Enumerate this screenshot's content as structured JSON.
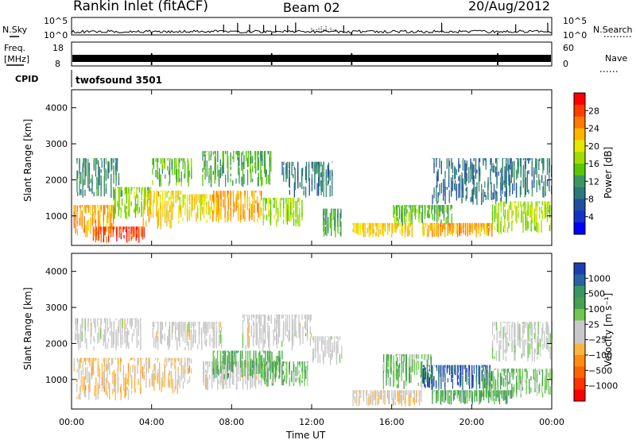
{
  "header": {
    "station": "Rankin Inlet (fitACF)",
    "beam": "Beam 02",
    "date": "20/Aug/2012"
  },
  "summary": {
    "nsky_label": "N.Sky",
    "nsky_ticks": [
      "10^5",
      "10^0"
    ],
    "nsearch_label": "N.Search",
    "nsearch_ticks": [
      "10^5",
      "10^0"
    ],
    "freq_label_top": "Freq.",
    "freq_label_unit": "[MHz]",
    "freq_ticks": [
      "18",
      "8"
    ],
    "nave_label": "Nave",
    "nave_ticks": [
      "60",
      "0"
    ],
    "cpid_label": "CPID",
    "cpid_value": "twofsound 3501"
  },
  "colorbars": {
    "power": {
      "title": "Power [dB]",
      "ticks": [
        "28",
        "24",
        "20",
        "16",
        "12",
        "8",
        "4"
      ],
      "colors": [
        "#ff0000",
        "#ff3c00",
        "#ff7800",
        "#ffb400",
        "#e6e600",
        "#a0dc00",
        "#5ac800",
        "#3c9660",
        "#2d7878",
        "#1e50a0",
        "#1432c8",
        "#0000ff"
      ]
    },
    "velocity": {
      "title": "Velocity [m s⁻¹]",
      "ticks": [
        "1000",
        "500",
        "100",
        "25",
        "−25",
        "−100",
        "−500",
        "−1000"
      ],
      "colors": [
        "#1e3cb4",
        "#2864a0",
        "#3c9664",
        "#46a050",
        "#6ec850",
        "#c8c8c8",
        "#c8c8c8",
        "#ffb43c",
        "#ff8c14",
        "#ff6400",
        "#ff3200",
        "#ff0000"
      ]
    }
  },
  "axes": {
    "ylabel": "Slant Range [km]",
    "xlabel": "Time UT",
    "yticks": [
      "4000",
      "3000",
      "2000",
      "1000"
    ],
    "xticks": [
      "00:00",
      "04:00",
      "08:00",
      "12:00",
      "16:00",
      "20:00",
      "00:00"
    ]
  },
  "chart_data": {
    "type": "heatmap",
    "x_unit": "hours UT",
    "x_range": [
      0,
      24
    ],
    "y_unit": "km",
    "y_range": [
      180,
      4500
    ],
    "panels": [
      {
        "name": "Power [dB]",
        "color_range": [
          0,
          30
        ],
        "blobs": [
          {
            "t0": 0.1,
            "t1": 2.1,
            "r0": 400,
            "r1": 1300,
            "value": 22
          },
          {
            "t0": 0.2,
            "t1": 2.4,
            "r0": 1500,
            "r1": 2600,
            "value": 10
          },
          {
            "t0": 1.0,
            "t1": 3.6,
            "r0": 250,
            "r1": 700,
            "value": 26
          },
          {
            "t0": 2.0,
            "t1": 4.0,
            "r0": 900,
            "r1": 1800,
            "value": 15
          },
          {
            "t0": 3.5,
            "t1": 5.5,
            "r0": 600,
            "r1": 1700,
            "value": 20
          },
          {
            "t0": 4.0,
            "t1": 6.0,
            "r0": 1800,
            "r1": 2600,
            "value": 13
          },
          {
            "t0": 5.5,
            "t1": 7.5,
            "r0": 800,
            "r1": 1600,
            "value": 19
          },
          {
            "t0": 7.0,
            "t1": 9.5,
            "r0": 800,
            "r1": 1700,
            "value": 22
          },
          {
            "t0": 6.5,
            "t1": 10.0,
            "r0": 1800,
            "r1": 2800,
            "value": 12
          },
          {
            "t0": 9.5,
            "t1": 11.5,
            "r0": 700,
            "r1": 1500,
            "value": 16
          },
          {
            "t0": 10.5,
            "t1": 13.0,
            "r0": 1500,
            "r1": 2500,
            "value": 9
          },
          {
            "t0": 12.5,
            "t1": 13.5,
            "r0": 400,
            "r1": 1200,
            "value": 12
          },
          {
            "t0": 14.0,
            "t1": 17.0,
            "r0": 400,
            "r1": 800,
            "value": 20
          },
          {
            "t0": 16.0,
            "t1": 19.0,
            "r0": 700,
            "r1": 1300,
            "value": 13
          },
          {
            "t0": 17.5,
            "t1": 21.0,
            "r0": 400,
            "r1": 800,
            "value": 22
          },
          {
            "t0": 18.0,
            "t1": 22.0,
            "r0": 1300,
            "r1": 2600,
            "value": 8
          },
          {
            "t0": 21.0,
            "t1": 24.0,
            "r0": 500,
            "r1": 1400,
            "value": 16
          },
          {
            "t0": 21.5,
            "t1": 24.0,
            "r0": 1500,
            "r1": 2600,
            "value": 9
          }
        ]
      },
      {
        "name": "Velocity [m s-1]",
        "color_range": [
          -1000,
          1000
        ],
        "blobs": [
          {
            "t0": 0.1,
            "t1": 3.5,
            "r0": 1800,
            "r1": 2700,
            "value": 0
          },
          {
            "t0": 0.1,
            "t1": 3.0,
            "r0": 400,
            "r1": 1600,
            "value": 180
          },
          {
            "t0": 3.0,
            "t1": 6.0,
            "r0": 600,
            "r1": 1600,
            "value": 160
          },
          {
            "t0": 4.0,
            "t1": 7.5,
            "r0": 1800,
            "r1": 2600,
            "value": 0
          },
          {
            "t0": 6.5,
            "t1": 9.5,
            "r0": 700,
            "r1": 1500,
            "value": 10
          },
          {
            "t0": 7.0,
            "t1": 10.5,
            "r0": 1000,
            "r1": 1800,
            "value": -350
          },
          {
            "t0": 9.5,
            "t1": 11.8,
            "r0": 800,
            "r1": 1500,
            "value": -300
          },
          {
            "t0": 8.5,
            "t1": 12.0,
            "r0": 1800,
            "r1": 2800,
            "value": 0
          },
          {
            "t0": 12.0,
            "t1": 13.5,
            "r0": 1400,
            "r1": 2200,
            "value": -10
          },
          {
            "t0": 14.0,
            "t1": 17.5,
            "r0": 250,
            "r1": 700,
            "value": 120
          },
          {
            "t0": 15.5,
            "t1": 18.0,
            "r0": 700,
            "r1": 1700,
            "value": -300
          },
          {
            "t0": 17.5,
            "t1": 21.0,
            "r0": 700,
            "r1": 1400,
            "value": -800
          },
          {
            "t0": 18.0,
            "t1": 22.0,
            "r0": 300,
            "r1": 700,
            "value": -400
          },
          {
            "t0": 20.5,
            "t1": 24.0,
            "r0": 500,
            "r1": 1300,
            "value": -300
          },
          {
            "t0": 21.0,
            "t1": 24.0,
            "r0": 1500,
            "r1": 2600,
            "value": -60
          }
        ]
      }
    ],
    "nsky_spikes_hours": [
      7.6,
      8.3,
      8.9,
      9.6,
      10.2,
      10.8,
      11.2,
      13.6,
      18.5,
      22.2,
      23.8
    ],
    "data_gaps_hours": [
      4.0,
      10.0,
      14.0,
      21.3
    ]
  }
}
